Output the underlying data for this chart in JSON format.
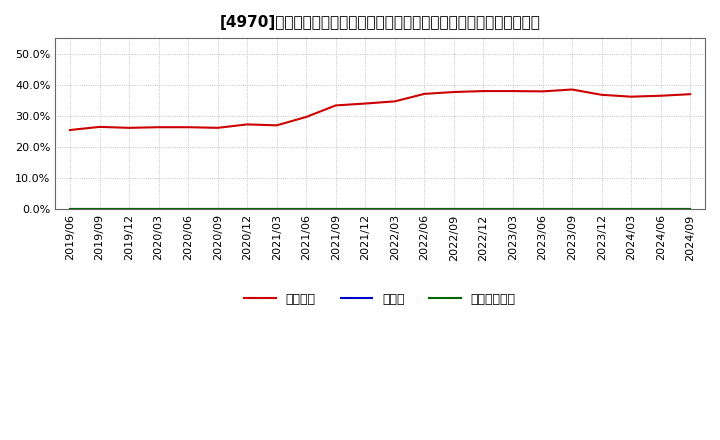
{
  "title": "[4970]　自己資本、のれん、繰延税金資産の総資産に対する比率の推移",
  "x_labels": [
    "2019/06",
    "2019/09",
    "2019/12",
    "2020/03",
    "2020/06",
    "2020/09",
    "2020/12",
    "2021/03",
    "2021/06",
    "2021/09",
    "2021/12",
    "2022/03",
    "2022/06",
    "2022/09",
    "2022/12",
    "2023/03",
    "2023/06",
    "2023/09",
    "2023/12",
    "2024/03",
    "2024/06",
    "2024/09"
  ],
  "jikoshihon": [
    0.255,
    0.265,
    0.262,
    0.264,
    0.264,
    0.262,
    0.273,
    0.27,
    0.297,
    0.334,
    0.34,
    0.347,
    0.371,
    0.377,
    0.38,
    0.38,
    0.379,
    0.385,
    0.368,
    0.362,
    0.365,
    0.37
  ],
  "noren": [
    0,
    0,
    0,
    0,
    0,
    0,
    0,
    0,
    0,
    0,
    0,
    0,
    0,
    0,
    0,
    0,
    0,
    0,
    0,
    0,
    0,
    0
  ],
  "kuenzeichin": [
    0,
    0,
    0,
    0,
    0,
    0,
    0,
    0,
    0,
    0,
    0,
    0,
    0,
    0,
    0,
    0,
    0,
    0,
    0,
    0,
    0,
    0
  ],
  "jikoshihon_color": "#cc0000",
  "noren_color": "#0000cc",
  "kuenzeichin_color": "#006600",
  "legend_labels": [
    "自己資本",
    "のれん",
    "繰延税金資産"
  ],
  "ylim": [
    0.0,
    0.55
  ],
  "yticks": [
    0.0,
    0.1,
    0.2,
    0.3,
    0.4,
    0.5
  ],
  "background_color": "#ffffff",
  "plot_bg_color": "#ffffff",
  "grid_color": "#aaaaaa",
  "title_fontsize": 11,
  "axis_fontsize": 8
}
